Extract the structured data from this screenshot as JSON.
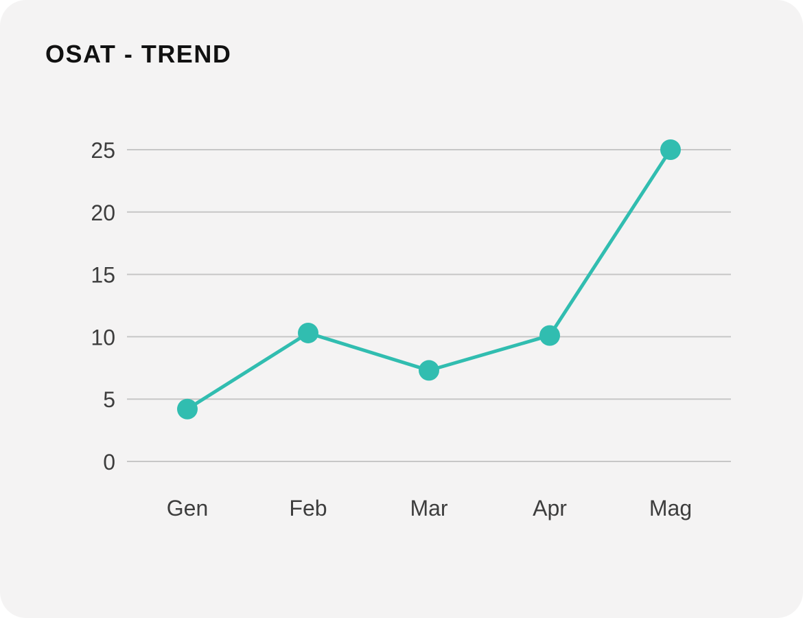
{
  "card": {
    "title": "OSAT - TREND"
  },
  "chart_data": {
    "type": "line",
    "title": "OSAT - TREND",
    "categories": [
      "Gen",
      "Feb",
      "Mar",
      "Apr",
      "Mag"
    ],
    "values": [
      4.2,
      10.3,
      7.3,
      10.1,
      25
    ],
    "series_name": "OSAT",
    "xlabel": "",
    "ylabel": "",
    "ylim": [
      0,
      25
    ],
    "yticks": [
      0,
      5,
      10,
      15,
      20,
      25
    ],
    "grid": "horizontal",
    "legend": "none",
    "marker": "circle"
  },
  "colors": {
    "accent": "#31bdb0",
    "card_background": "#f4f3f3",
    "page_background": "#ffffff",
    "gridline": "#c6c6c6",
    "axis_text": "#3d3d3d",
    "title_text": "#111111"
  }
}
